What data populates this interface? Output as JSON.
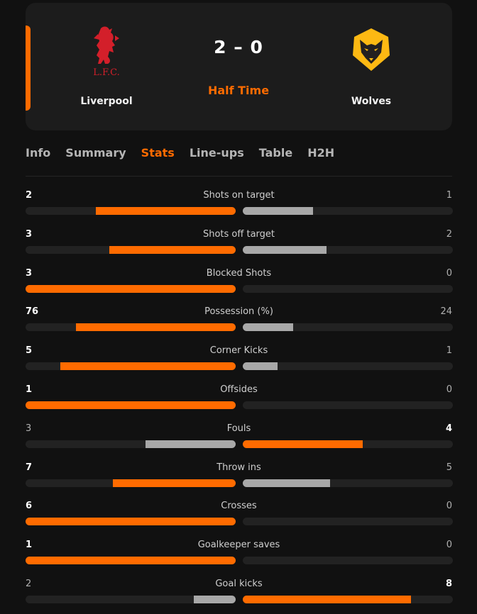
{
  "match": {
    "home": {
      "name": "Liverpool",
      "crest_text": "L.F.C."
    },
    "away": {
      "name": "Wolves"
    },
    "score": "2 – 0",
    "status": "Half Time"
  },
  "tabs": [
    {
      "label": "Info",
      "active": false
    },
    {
      "label": "Summary",
      "active": false
    },
    {
      "label": "Stats",
      "active": true
    },
    {
      "label": "Line-ups",
      "active": false
    },
    {
      "label": "Table",
      "active": false
    },
    {
      "label": "H2H",
      "active": false
    }
  ],
  "colors": {
    "accent": "#ff6b00",
    "trailing": "#a8a8a8",
    "track": "#222222",
    "background": "#111111"
  },
  "stats": [
    {
      "label": "Shots on target",
      "home": 2,
      "away": 1
    },
    {
      "label": "Shots off target",
      "home": 3,
      "away": 2
    },
    {
      "label": "Blocked Shots",
      "home": 3,
      "away": 0
    },
    {
      "label": "Possession (%)",
      "home": 76,
      "away": 24
    },
    {
      "label": "Corner Kicks",
      "home": 5,
      "away": 1
    },
    {
      "label": "Offsides",
      "home": 1,
      "away": 0
    },
    {
      "label": "Fouls",
      "home": 3,
      "away": 4
    },
    {
      "label": "Throw ins",
      "home": 7,
      "away": 5
    },
    {
      "label": "Crosses",
      "home": 6,
      "away": 0
    },
    {
      "label": "Goalkeeper saves",
      "home": 1,
      "away": 0
    },
    {
      "label": "Goal kicks",
      "home": 2,
      "away": 8
    }
  ]
}
